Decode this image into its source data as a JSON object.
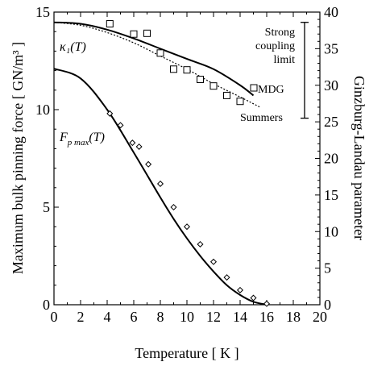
{
  "chart_data": {
    "type": "line",
    "xlabel": "Temperature [ K ]",
    "ylabel_left": "Maximum bulk pinning force [ GN/m³ ]",
    "ylabel_right": "Ginzburg-Landau parameter",
    "xlim": [
      0,
      20
    ],
    "ylim_left": [
      0,
      15
    ],
    "ylim_right": [
      0,
      40
    ],
    "xticks": [
      "0",
      "2",
      "4",
      "6",
      "8",
      "10",
      "12",
      "14",
      "16",
      "18",
      "20"
    ],
    "yticks_left": [
      "0",
      "5",
      "10",
      "15"
    ],
    "yticks_right": [
      "0",
      "5",
      "10",
      "15",
      "20",
      "25",
      "30",
      "35",
      "40"
    ],
    "grid": false,
    "series": [
      {
        "name": "MDG",
        "kind": "line",
        "axis": "right",
        "x": [
          0,
          2,
          4,
          6,
          8,
          10,
          12,
          14,
          15
        ],
        "y": [
          38.6,
          38.4,
          37.6,
          36.4,
          35.0,
          33.6,
          32.2,
          30.0,
          28.6
        ]
      },
      {
        "name": "Summers",
        "kind": "dotted-line",
        "axis": "right",
        "x": [
          0,
          2,
          4,
          6,
          8,
          10,
          12,
          14,
          15.5
        ],
        "y": [
          38.6,
          38.2,
          37.2,
          35.8,
          34.0,
          32.2,
          30.2,
          28.4,
          27.0
        ]
      },
      {
        "name": "κ1 data",
        "kind": "square-markers",
        "axis": "right",
        "x": [
          4.2,
          6,
          7,
          8,
          9,
          10,
          11,
          12,
          13,
          14
        ],
        "y": [
          38.4,
          37.0,
          37.1,
          34.4,
          32.2,
          32.1,
          30.8,
          29.9,
          28.6,
          27.8
        ]
      },
      {
        "name": "Fp max fit",
        "kind": "line",
        "axis": "left",
        "x": [
          0,
          2,
          4,
          6,
          8,
          9,
          10,
          11,
          12,
          13,
          14,
          15,
          16
        ],
        "y": [
          12.1,
          11.6,
          10.0,
          7.8,
          5.5,
          4.4,
          3.4,
          2.5,
          1.7,
          1.0,
          0.5,
          0.15,
          0.0
        ]
      },
      {
        "name": "Fp max data",
        "kind": "diamond-markers",
        "axis": "left",
        "x": [
          4.2,
          5,
          5.9,
          6.4,
          7.1,
          8.0,
          9.0,
          10.0,
          11.0,
          12.0,
          13.0,
          14.0,
          15.0,
          16.0
        ],
        "y": [
          9.8,
          9.2,
          8.3,
          8.1,
          7.2,
          6.2,
          5.0,
          4.0,
          3.1,
          2.2,
          1.4,
          0.75,
          0.35,
          0.05
        ]
      }
    ],
    "annotations": {
      "kappa_label": "κ₁(T)",
      "fp_label": "F",
      "fp_sub": "p max",
      "fp_tail": "(T)",
      "mdg": "MDG",
      "summers": "Summers",
      "strong_line1": "Strong",
      "strong_line2": "coupling",
      "strong_line3": "limit",
      "strong_range": [
        25.5,
        38.6
      ]
    }
  }
}
